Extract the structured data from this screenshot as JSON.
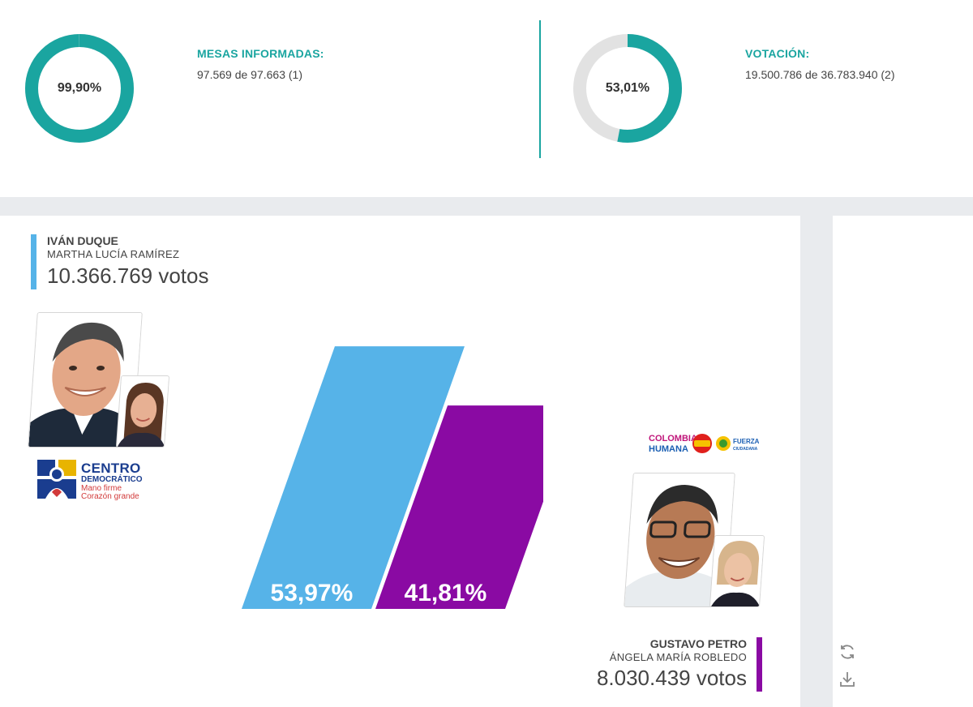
{
  "stats": {
    "mesas": {
      "percent_text": "99,90%",
      "percent_value": 99.9,
      "label": "MESAS INFORMADAS:",
      "detail": "97.569 de 97.663 (1)"
    },
    "votacion": {
      "percent_text": "53,01%",
      "percent_value": 53.01,
      "label": "VOTACIÓN:",
      "detail": "19.500.786 de 36.783.940 (2)"
    }
  },
  "candidates": [
    {
      "name": "IVÁN DUQUE",
      "running_mate": "MARTHA LUCÍA RAMÍREZ",
      "votes_text": "10.366.769 votos",
      "percent_text": "53,97%",
      "percent_value": 53.97,
      "color": "#56b3e8",
      "party": {
        "name_line1": "CENTRO",
        "name_line2": "DEMOCRÁTICO",
        "slogan_line1": "Mano firme",
        "slogan_line2": "Corazón grande"
      }
    },
    {
      "name": "GUSTAVO PETRO",
      "running_mate": "ÁNGELA MARÍA ROBLEDO",
      "votes_text": "8.030.439 votos",
      "percent_text": "41,81%",
      "percent_value": 41.81,
      "color": "#8a0aa3",
      "party": {
        "logo1_line1": "COLOMBIA",
        "logo1_line2": "HUMANA",
        "logo3_line1": "FUERZA",
        "logo3_line2": "CIUDADANA"
      }
    }
  ],
  "theme": {
    "accent": "#1aa5a0",
    "ring_track": "#e2e2e2",
    "band": "#e9ebee"
  },
  "icons": {
    "refresh": "refresh-icon",
    "download": "download-icon"
  }
}
